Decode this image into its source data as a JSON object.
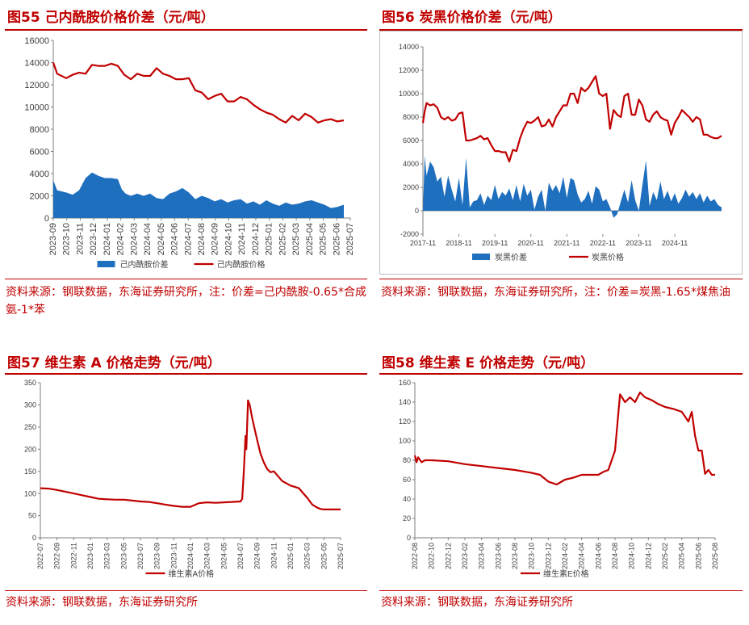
{
  "figures": [
    {
      "title": "图55  己内酰胺价格价差（元/吨）",
      "source": "资料来源：钢联数据，东海证券研究所，注：价差=己内酰胺-0.65*合成氨-1*苯"
    },
    {
      "title": "图56  炭黑价格价差（元/吨）",
      "source": "资料来源：钢联数据，东海证券研究所，注：价差=炭黑-1.65*煤焦油"
    },
    {
      "title": "图57  维生素 A 价格走势（元/吨）",
      "source": "资料来源：钢联数据，东海证券研究所"
    },
    {
      "title": "图58  维生素 E 价格走势（元/吨）",
      "source": "资料来源：钢联数据，东海证券研究所"
    }
  ],
  "chart_data": [
    {
      "type": "area+line",
      "ylim": [
        0,
        16000
      ],
      "yticks": [
        0,
        2000,
        4000,
        6000,
        8000,
        10000,
        12000,
        14000,
        16000
      ],
      "xlim": [
        0,
        23
      ],
      "xticks": [
        "2023-09",
        "2023-10",
        "2023-11",
        "2023-12",
        "2024-01",
        "2024-02",
        "2024-03",
        "2024-04",
        "2024-05",
        "2024-06",
        "2024-07",
        "2024-08",
        "2024-09",
        "2024-10",
        "2024-11",
        "2024-12",
        "2025-01",
        "2025-02",
        "2025-03",
        "2025-04",
        "2025-05",
        "2025-06",
        "2025-07"
      ],
      "legend_position": "bottom",
      "colors": {
        "spread": "#1f6fbf",
        "price": "#c00000"
      },
      "series": [
        {
          "name": "己内酰胺价差",
          "kind": "area",
          "x": [
            0,
            0.3,
            1,
            1.5,
            2,
            2.5,
            3,
            3.5,
            4,
            4.5,
            5,
            5.3,
            5.6,
            6,
            6.5,
            7,
            7.5,
            8,
            8.5,
            9,
            9.5,
            10,
            10.5,
            11,
            11.5,
            12,
            12.5,
            13,
            13.5,
            14,
            14.5,
            15,
            15.5,
            16,
            16.5,
            17,
            17.5,
            18,
            18.5,
            19,
            19.5,
            20,
            20.5,
            21,
            21.5,
            22,
            22.5
          ],
          "y": [
            3400,
            2500,
            2300,
            2100,
            2500,
            3600,
            4100,
            3800,
            3600,
            3600,
            3500,
            2600,
            2200,
            2000,
            2200,
            2000,
            2200,
            1800,
            1700,
            2200,
            2400,
            2700,
            2300,
            1700,
            2000,
            1800,
            1500,
            1700,
            1400,
            1600,
            1700,
            1300,
            1500,
            1200,
            1600,
            1300,
            1100,
            1400,
            1200,
            1300,
            1500,
            1600,
            1400,
            1200,
            900,
            1000,
            1200
          ]
        },
        {
          "name": "己内酰胺价格",
          "kind": "line",
          "x": [
            0,
            0.3,
            1,
            1.5,
            2,
            2.5,
            3,
            3.5,
            4,
            4.5,
            5,
            5.5,
            6,
            6.5,
            7,
            7.5,
            8,
            8.5,
            9,
            9.5,
            10,
            10.5,
            11,
            11.5,
            12,
            12.5,
            13,
            13.5,
            14,
            14.5,
            15,
            15.5,
            16,
            16.5,
            17,
            17.5,
            18,
            18.5,
            19,
            19.5,
            20,
            20.5,
            21,
            21.5,
            22,
            22.5
          ],
          "y": [
            14000,
            13000,
            12600,
            12900,
            13100,
            13000,
            13800,
            13700,
            13700,
            13900,
            13700,
            12900,
            12500,
            13000,
            12800,
            12800,
            13500,
            13000,
            12800,
            12500,
            12500,
            12600,
            11500,
            11300,
            10700,
            11000,
            11200,
            10500,
            10500,
            10900,
            10700,
            10200,
            9800,
            9500,
            9300,
            8900,
            8600,
            9200,
            8800,
            9400,
            9100,
            8600,
            8800,
            8900,
            8700,
            8800
          ]
        }
      ]
    },
    {
      "type": "area+line",
      "ylim": [
        -2000,
        14000
      ],
      "yticks": [
        -2000,
        0,
        2000,
        4000,
        6000,
        8000,
        10000,
        12000,
        14000
      ],
      "xlim": [
        0,
        8.3
      ],
      "xticks": [
        "2017-11",
        "2018-11",
        "2019-11",
        "2020-11",
        "2021-11",
        "2022-11",
        "2023-11",
        "2024-11"
      ],
      "legend_position": "bottom",
      "colors": {
        "spread": "#1f6fbf",
        "price": "#c00000"
      },
      "series": [
        {
          "name": "炭黑价差",
          "kind": "area",
          "x": [
            0,
            0.05,
            0.1,
            0.2,
            0.3,
            0.4,
            0.5,
            0.6,
            0.7,
            0.8,
            0.9,
            1.0,
            1.1,
            1.2,
            1.3,
            1.4,
            1.5,
            1.6,
            1.7,
            1.8,
            1.9,
            2.0,
            2.1,
            2.2,
            2.3,
            2.4,
            2.5,
            2.6,
            2.7,
            2.8,
            2.9,
            3.0,
            3.1,
            3.2,
            3.3,
            3.4,
            3.5,
            3.6,
            3.7,
            3.8,
            3.9,
            4.0,
            4.1,
            4.2,
            4.3,
            4.4,
            4.5,
            4.6,
            4.7,
            4.8,
            4.9,
            5.0,
            5.1,
            5.2,
            5.3,
            5.4,
            5.5,
            5.6,
            5.7,
            5.8,
            5.9,
            6.0,
            6.1,
            6.2,
            6.3,
            6.4,
            6.5,
            6.6,
            6.7,
            6.8,
            6.9,
            7.0,
            7.1,
            7.2,
            7.3,
            7.4,
            7.5,
            7.6,
            7.7,
            7.8,
            7.9,
            8.0,
            8.1,
            8.2,
            8.3
          ],
          "y": [
            0,
            4700,
            3000,
            4200,
            3700,
            2500,
            2900,
            1200,
            3000,
            1800,
            800,
            2800,
            500,
            4500,
            300,
            800,
            900,
            1500,
            500,
            1300,
            900,
            2200,
            1000,
            1600,
            1300,
            1900,
            900,
            2200,
            800,
            2300,
            1300,
            1800,
            100,
            1200,
            1800,
            0,
            2400,
            1700,
            2200,
            1500,
            2900,
            1100,
            2800,
            2600,
            1400,
            700,
            1000,
            1700,
            600,
            2100,
            1800,
            800,
            1000,
            300,
            -600,
            -300,
            800,
            1800,
            700,
            2600,
            900,
            0,
            2200,
            4300,
            400,
            1600,
            900,
            2500,
            1000,
            1700,
            800,
            1500,
            600,
            1100,
            1800,
            1200,
            1600,
            1000,
            1500,
            700,
            1300,
            800,
            1000,
            500,
            300
          ]
        },
        {
          "name": "炭黑价格",
          "kind": "line",
          "x": [
            0,
            0.05,
            0.1,
            0.2,
            0.3,
            0.4,
            0.5,
            0.6,
            0.7,
            0.8,
            0.9,
            1.0,
            1.1,
            1.2,
            1.3,
            1.4,
            1.5,
            1.6,
            1.7,
            1.8,
            1.9,
            2.0,
            2.1,
            2.2,
            2.3,
            2.4,
            2.5,
            2.6,
            2.7,
            2.8,
            2.9,
            3.0,
            3.1,
            3.2,
            3.3,
            3.4,
            3.5,
            3.6,
            3.7,
            3.8,
            3.9,
            4.0,
            4.1,
            4.2,
            4.3,
            4.4,
            4.5,
            4.6,
            4.7,
            4.8,
            4.9,
            5.0,
            5.1,
            5.2,
            5.3,
            5.4,
            5.5,
            5.6,
            5.7,
            5.8,
            5.9,
            6.0,
            6.1,
            6.2,
            6.3,
            6.4,
            6.5,
            6.6,
            6.7,
            6.8,
            6.9,
            7.0,
            7.1,
            7.2,
            7.3,
            7.4,
            7.5,
            7.6,
            7.7,
            7.8,
            7.9,
            8.0,
            8.1,
            8.2,
            8.3
          ],
          "y": [
            7500,
            8500,
            9200,
            9000,
            9100,
            8800,
            8000,
            7800,
            8000,
            7700,
            7800,
            8300,
            8400,
            6000,
            6000,
            6100,
            6200,
            6400,
            6100,
            6200,
            5600,
            5100,
            5100,
            5000,
            5000,
            4200,
            5200,
            5100,
            6200,
            7000,
            7600,
            7500,
            7700,
            8000,
            7200,
            7300,
            7800,
            7200,
            8000,
            8500,
            9000,
            9000,
            10000,
            10000,
            9200,
            10500,
            10200,
            10500,
            11000,
            11500,
            10000,
            9800,
            10000,
            7000,
            8600,
            8200,
            8000,
            9800,
            10000,
            8200,
            8200,
            9500,
            9000,
            7800,
            7600,
            8200,
            8500,
            8000,
            7800,
            7700,
            6500,
            7500,
            8000,
            8600,
            8300,
            8000,
            7600,
            8000,
            7800,
            6500,
            6500,
            6300,
            6200,
            6200,
            6400
          ]
        }
      ]
    },
    {
      "type": "line",
      "ylim": [
        0,
        350
      ],
      "yticks": [
        0,
        50,
        100,
        150,
        200,
        250,
        300,
        350
      ],
      "xlim": [
        0,
        18
      ],
      "xticks": [
        "2022-07",
        "2022-09",
        "2022-11",
        "2023-01",
        "2023-03",
        "2023-05",
        "2023-07",
        "2023-09",
        "2023-11",
        "2024-01",
        "2024-03",
        "2024-05",
        "2024-07",
        "2024-09",
        "2024-11",
        "2025-01",
        "2025-03",
        "2025-05",
        "2025-07"
      ],
      "legend_position": "bottom",
      "colors": {
        "line": "#c00000"
      },
      "series": [
        {
          "name": "维生素A价格",
          "x": [
            0,
            0.5,
            1,
            1.5,
            2,
            2.5,
            3,
            3.5,
            4,
            4.5,
            5,
            5.5,
            6,
            6.5,
            7,
            7.5,
            8,
            8.5,
            9,
            9.5,
            10,
            10.5,
            11,
            11.5,
            12,
            12.1,
            12.2,
            12.3,
            12.35,
            12.45,
            12.55,
            12.7,
            12.85,
            13,
            13.2,
            13.4,
            13.6,
            13.8,
            14,
            14.5,
            15,
            15.5,
            16,
            16.3,
            16.6,
            16.8,
            17,
            17.5,
            18
          ],
          "y": [
            112,
            111,
            108,
            104,
            100,
            96,
            92,
            88,
            87,
            86,
            86,
            84,
            82,
            81,
            78,
            75,
            72,
            70,
            70,
            78,
            80,
            79,
            80,
            81,
            82,
            88,
            150,
            230,
            200,
            310,
            300,
            270,
            245,
            220,
            190,
            170,
            155,
            148,
            150,
            128,
            118,
            112,
            90,
            75,
            68,
            65,
            64,
            64,
            64
          ]
        }
      ]
    },
    {
      "type": "line",
      "ylim": [
        0,
        160
      ],
      "yticks": [
        0,
        20,
        40,
        60,
        80,
        100,
        120,
        140,
        160
      ],
      "xlim": [
        0,
        18
      ],
      "xticks": [
        "2022-08",
        "2022-10",
        "2022-12",
        "2023-02",
        "2023-04",
        "2023-06",
        "2023-08",
        "2023-10",
        "2023-12",
        "2024-02",
        "2024-04",
        "2024-06",
        "2024-08",
        "2024-10",
        "2024-12",
        "2025-02",
        "2025-04",
        "2025-06",
        "2025-08"
      ],
      "legend_position": "bottom",
      "colors": {
        "line": "#c00000"
      },
      "series": [
        {
          "name": "维生素E价格",
          "x": [
            0,
            0.1,
            0.2,
            0.4,
            0.6,
            1,
            2,
            3,
            4,
            5,
            6,
            7,
            7.5,
            8,
            8.5,
            9,
            9.5,
            10,
            10.5,
            11,
            11.3,
            11.6,
            12,
            12.3,
            12.6,
            12.9,
            13.2,
            13.5,
            13.8,
            14.2,
            14.6,
            15,
            15.5,
            16,
            16.4,
            16.6,
            16.8,
            17,
            17.2,
            17.4,
            17.6,
            17.8,
            18
          ],
          "y": [
            85,
            78,
            83,
            78,
            80,
            80,
            79,
            76,
            74,
            72,
            70,
            67,
            65,
            58,
            55,
            60,
            62,
            65,
            65,
            65,
            68,
            70,
            90,
            148,
            140,
            145,
            140,
            150,
            145,
            142,
            138,
            135,
            133,
            130,
            120,
            130,
            105,
            90,
            90,
            66,
            70,
            65,
            65
          ]
        }
      ]
    }
  ]
}
